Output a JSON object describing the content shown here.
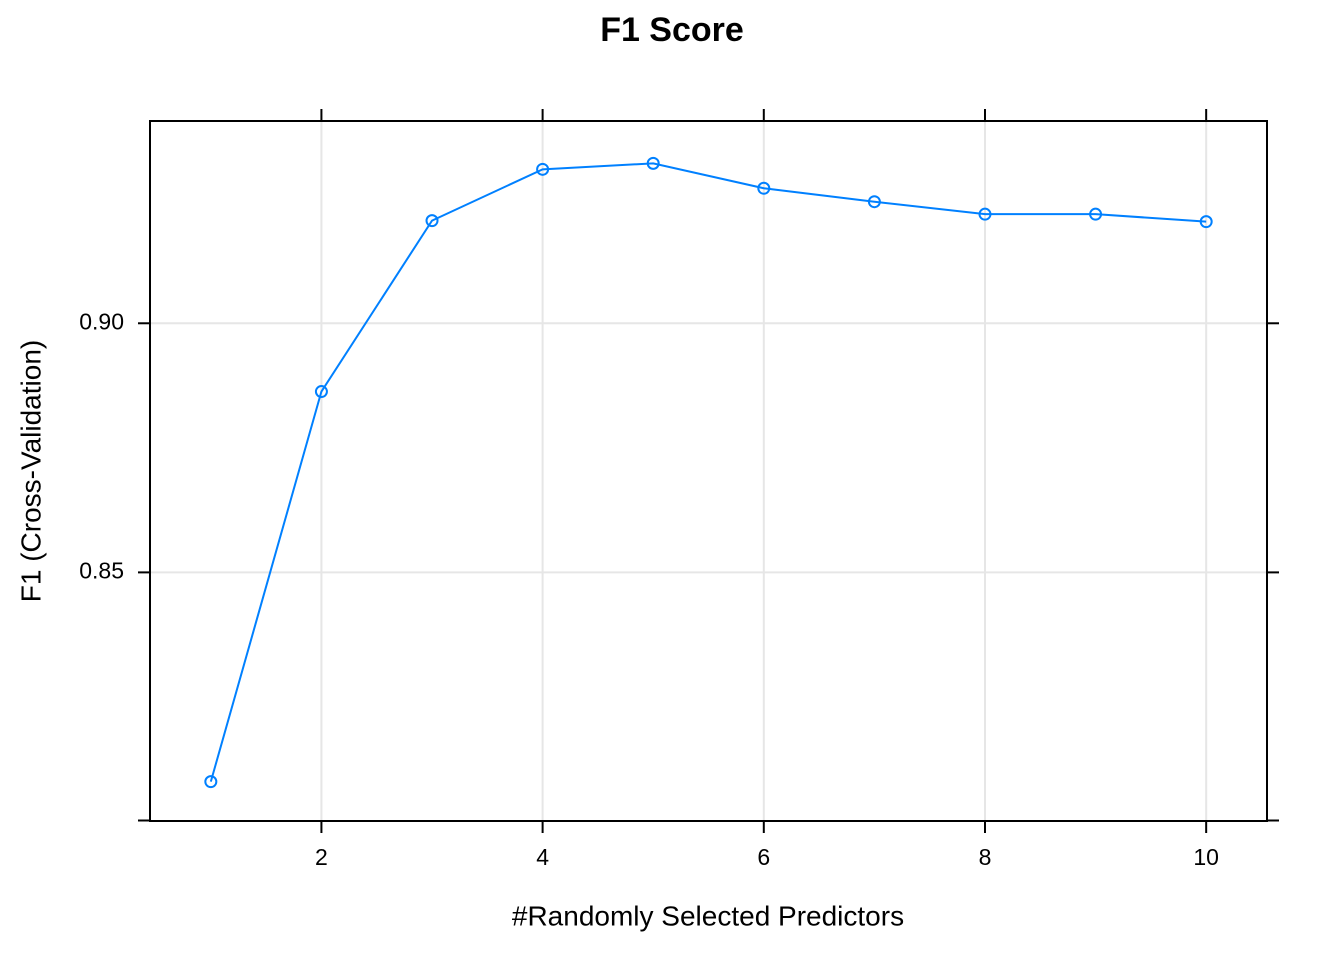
{
  "chart_data": {
    "type": "line",
    "title": "F1 Score",
    "xlabel": "#Randomly Selected Predictors",
    "ylabel": "F1 (Cross-Validation)",
    "xlim": [
      0.45,
      10.55
    ],
    "ylim": [
      0.8001,
      0.9406
    ],
    "x_ticks": [
      2,
      4,
      6,
      8,
      10
    ],
    "x_tick_labels": [
      "2",
      "4",
      "6",
      "8",
      "10"
    ],
    "y_ticks": [
      0.85,
      0.9
    ],
    "y_tick_labels": [
      "0.85",
      "0.90"
    ],
    "grid": true,
    "series": [
      {
        "color": "#0080ff",
        "x": [
          1,
          2,
          3,
          4,
          5,
          6,
          7,
          8,
          9,
          10
        ],
        "values": [
          0.808,
          0.8863,
          0.9206,
          0.9309,
          0.9321,
          0.9271,
          0.9244,
          0.9219,
          0.9219,
          0.9204
        ]
      }
    ]
  }
}
